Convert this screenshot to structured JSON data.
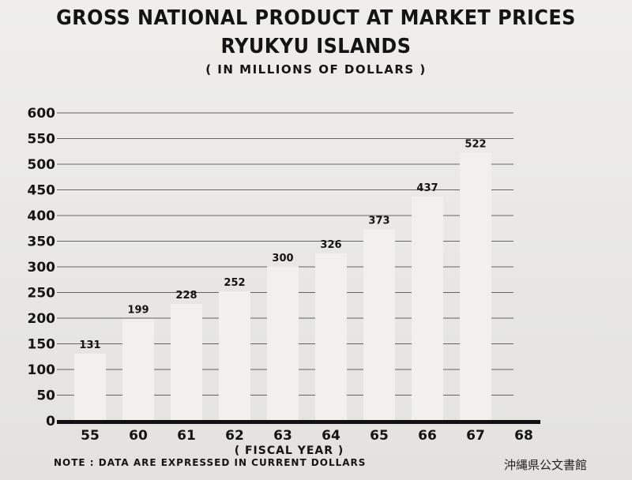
{
  "title_line1": "GROSS NATIONAL PRODUCT AT MARKET PRICES",
  "title_line2": "RYUKYU ISLANDS",
  "subtitle": "( IN MILLIONS OF DOLLARS )",
  "note": "NOTE : DATA ARE EXPRESSED IN CURRENT DOLLARS",
  "watermark": "沖縄県公文書館",
  "chart_data": {
    "type": "bar",
    "categories": [
      "55",
      "60",
      "61",
      "62",
      "63",
      "64",
      "65",
      "66",
      "67",
      "68"
    ],
    "values": [
      131,
      199,
      228,
      252,
      300,
      326,
      373,
      437,
      522,
      null
    ],
    "data_labels": [
      "131",
      "199",
      "228",
      "252",
      "300",
      "326",
      "373",
      "437",
      "522",
      ""
    ],
    "xlabel": "( FISCAL YEAR )",
    "ylabel": "",
    "ylim": [
      0,
      600
    ],
    "yticks": [
      0,
      50,
      100,
      150,
      200,
      250,
      300,
      350,
      400,
      450,
      500,
      550,
      600
    ],
    "grid": true,
    "colors": {
      "bar": "#f1f0ec",
      "grid": "#3a3a3a",
      "axis": "#111111"
    }
  }
}
